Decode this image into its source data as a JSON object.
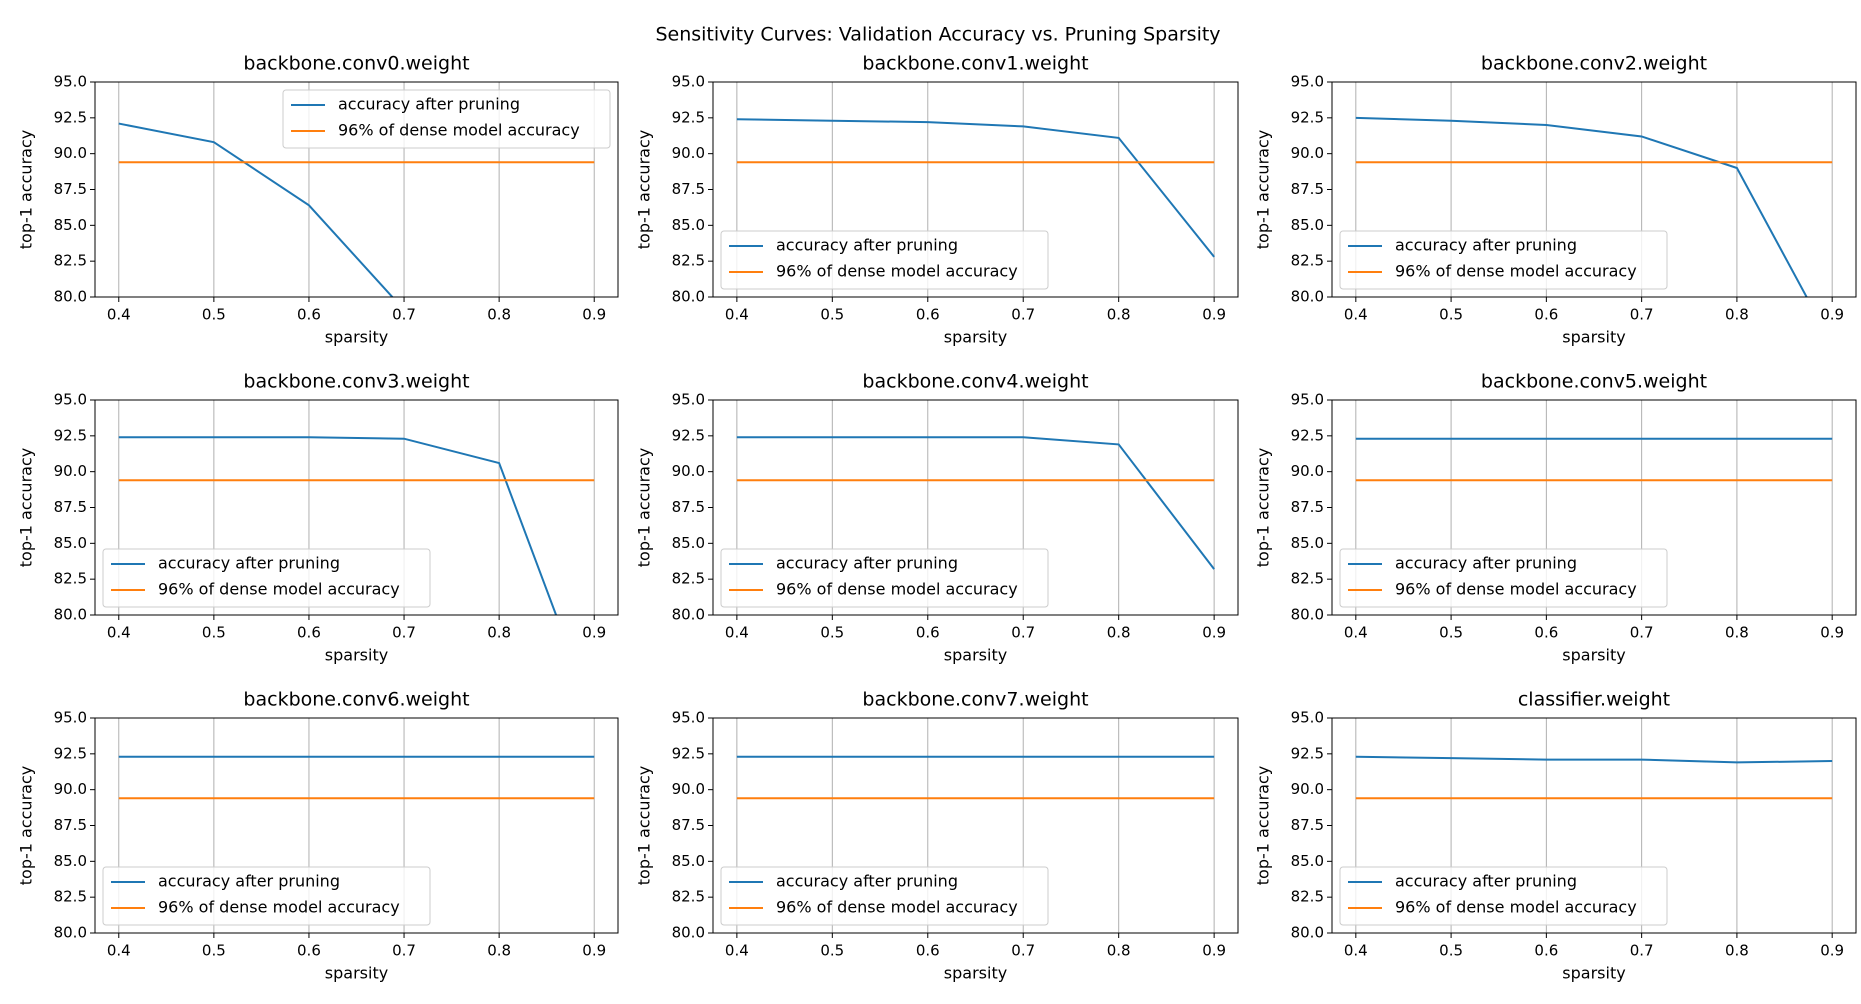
{
  "title": "Sensitivity Curves: Validation Accuracy vs. Pruning Sparsity",
  "chart_data": [
    {
      "type": "line",
      "title": "backbone.conv0.weight",
      "xlabel": "sparsity",
      "ylabel": "top-1 accuracy",
      "legend": "upper right",
      "grid": "x",
      "x": [
        0.4,
        0.5,
        0.6,
        0.7,
        0.8,
        0.9
      ],
      "xlim": [
        0.375,
        0.925
      ],
      "xticks": [
        0.4,
        0.5,
        0.6,
        0.7,
        0.8,
        0.9
      ],
      "ylim": [
        80,
        95
      ],
      "yticks": [
        {
          "value": 80,
          "label": "80.0"
        },
        {
          "value": 82.5,
          "label": "82.5"
        },
        {
          "value": 85,
          "label": "85.0"
        },
        {
          "value": 87.5,
          "label": "87.5"
        },
        {
          "value": 90,
          "label": "90.0"
        },
        {
          "value": 92.5,
          "label": "92.5"
        },
        {
          "value": 95,
          "label": "95.0"
        }
      ],
      "series": [
        {
          "name": "accuracy after pruning",
          "color": "#1f77b4",
          "values": [
            92.1,
            90.8,
            86.4,
            79.1,
            null,
            null
          ]
        },
        {
          "name": "96% of dense model accuracy",
          "color": "#ff7f0e",
          "values": [
            89.4,
            89.4,
            89.4,
            89.4,
            89.4,
            89.4
          ]
        }
      ]
    },
    {
      "type": "line",
      "title": "backbone.conv1.weight",
      "xlabel": "sparsity",
      "ylabel": "top-1 accuracy",
      "legend": "lower left",
      "grid": "x",
      "x": [
        0.4,
        0.5,
        0.6,
        0.7,
        0.8,
        0.9
      ],
      "xlim": [
        0.375,
        0.925
      ],
      "xticks": [
        0.4,
        0.5,
        0.6,
        0.7,
        0.8,
        0.9
      ],
      "ylim": [
        80,
        95
      ],
      "yticks": [
        {
          "value": 80,
          "label": "80.0"
        },
        {
          "value": 82.5,
          "label": "82.5"
        },
        {
          "value": 85,
          "label": "85.0"
        },
        {
          "value": 87.5,
          "label": "87.5"
        },
        {
          "value": 90,
          "label": "90.0"
        },
        {
          "value": 92.5,
          "label": "92.5"
        },
        {
          "value": 95,
          "label": "95.0"
        }
      ],
      "series": [
        {
          "name": "accuracy after pruning",
          "color": "#1f77b4",
          "values": [
            92.4,
            92.3,
            92.2,
            91.9,
            91.1,
            82.8
          ]
        },
        {
          "name": "96% of dense model accuracy",
          "color": "#ff7f0e",
          "values": [
            89.4,
            89.4,
            89.4,
            89.4,
            89.4,
            89.4
          ]
        }
      ]
    },
    {
      "type": "line",
      "title": "backbone.conv2.weight",
      "xlabel": "sparsity",
      "ylabel": "top-1 accuracy",
      "legend": "lower left",
      "grid": "x",
      "x": [
        0.4,
        0.5,
        0.6,
        0.7,
        0.8,
        0.9
      ],
      "xlim": [
        0.375,
        0.925
      ],
      "xticks": [
        0.4,
        0.5,
        0.6,
        0.7,
        0.8,
        0.9
      ],
      "ylim": [
        80,
        95
      ],
      "yticks": [
        {
          "value": 80,
          "label": "80.0"
        },
        {
          "value": 82.5,
          "label": "82.5"
        },
        {
          "value": 85,
          "label": "85.0"
        },
        {
          "value": 87.5,
          "label": "87.5"
        },
        {
          "value": 90,
          "label": "90.0"
        },
        {
          "value": 92.5,
          "label": "92.5"
        },
        {
          "value": 95,
          "label": "95.0"
        }
      ],
      "series": [
        {
          "name": "accuracy after pruning",
          "color": "#1f77b4",
          "values": [
            92.5,
            92.3,
            92.0,
            91.2,
            89.0,
            76.7
          ]
        },
        {
          "name": "96% of dense model accuracy",
          "color": "#ff7f0e",
          "values": [
            89.4,
            89.4,
            89.4,
            89.4,
            89.4,
            89.4
          ]
        }
      ]
    },
    {
      "type": "line",
      "title": "backbone.conv3.weight",
      "xlabel": "sparsity",
      "ylabel": "top-1 accuracy",
      "legend": "lower left",
      "grid": "x",
      "x": [
        0.4,
        0.5,
        0.6,
        0.7,
        0.8,
        0.9
      ],
      "xlim": [
        0.375,
        0.925
      ],
      "xticks": [
        0.4,
        0.5,
        0.6,
        0.7,
        0.8,
        0.9
      ],
      "ylim": [
        80,
        95
      ],
      "yticks": [
        {
          "value": 80,
          "label": "80.0"
        },
        {
          "value": 82.5,
          "label": "82.5"
        },
        {
          "value": 85,
          "label": "85.0"
        },
        {
          "value": 87.5,
          "label": "87.5"
        },
        {
          "value": 90,
          "label": "90.0"
        },
        {
          "value": 92.5,
          "label": "92.5"
        },
        {
          "value": 95,
          "label": "95.0"
        }
      ],
      "series": [
        {
          "name": "accuracy after pruning",
          "color": "#1f77b4",
          "values": [
            92.4,
            92.4,
            92.4,
            92.3,
            90.6,
            72.9
          ]
        },
        {
          "name": "96% of dense model accuracy",
          "color": "#ff7f0e",
          "values": [
            89.4,
            89.4,
            89.4,
            89.4,
            89.4,
            89.4
          ]
        }
      ]
    },
    {
      "type": "line",
      "title": "backbone.conv4.weight",
      "xlabel": "sparsity",
      "ylabel": "top-1 accuracy",
      "legend": "lower left",
      "grid": "x",
      "x": [
        0.4,
        0.5,
        0.6,
        0.7,
        0.8,
        0.9
      ],
      "xlim": [
        0.375,
        0.925
      ],
      "xticks": [
        0.4,
        0.5,
        0.6,
        0.7,
        0.8,
        0.9
      ],
      "ylim": [
        80,
        95
      ],
      "yticks": [
        {
          "value": 80,
          "label": "80.0"
        },
        {
          "value": 82.5,
          "label": "82.5"
        },
        {
          "value": 85,
          "label": "85.0"
        },
        {
          "value": 87.5,
          "label": "87.5"
        },
        {
          "value": 90,
          "label": "90.0"
        },
        {
          "value": 92.5,
          "label": "92.5"
        },
        {
          "value": 95,
          "label": "95.0"
        }
      ],
      "series": [
        {
          "name": "accuracy after pruning",
          "color": "#1f77b4",
          "values": [
            92.4,
            92.4,
            92.4,
            92.4,
            91.9,
            83.2
          ]
        },
        {
          "name": "96% of dense model accuracy",
          "color": "#ff7f0e",
          "values": [
            89.4,
            89.4,
            89.4,
            89.4,
            89.4,
            89.4
          ]
        }
      ]
    },
    {
      "type": "line",
      "title": "backbone.conv5.weight",
      "xlabel": "sparsity",
      "ylabel": "top-1 accuracy",
      "legend": "lower left",
      "grid": "x",
      "x": [
        0.4,
        0.5,
        0.6,
        0.7,
        0.8,
        0.9
      ],
      "xlim": [
        0.375,
        0.925
      ],
      "xticks": [
        0.4,
        0.5,
        0.6,
        0.7,
        0.8,
        0.9
      ],
      "ylim": [
        80,
        95
      ],
      "yticks": [
        {
          "value": 80,
          "label": "80.0"
        },
        {
          "value": 82.5,
          "label": "82.5"
        },
        {
          "value": 85,
          "label": "85.0"
        },
        {
          "value": 87.5,
          "label": "87.5"
        },
        {
          "value": 90,
          "label": "90.0"
        },
        {
          "value": 92.5,
          "label": "92.5"
        },
        {
          "value": 95,
          "label": "95.0"
        }
      ],
      "series": [
        {
          "name": "accuracy after pruning",
          "color": "#1f77b4",
          "values": [
            92.3,
            92.3,
            92.3,
            92.3,
            92.3,
            92.3
          ]
        },
        {
          "name": "96% of dense model accuracy",
          "color": "#ff7f0e",
          "values": [
            89.4,
            89.4,
            89.4,
            89.4,
            89.4,
            89.4
          ]
        }
      ]
    },
    {
      "type": "line",
      "title": "backbone.conv6.weight",
      "xlabel": "sparsity",
      "ylabel": "top-1 accuracy",
      "legend": "lower left",
      "grid": "x",
      "x": [
        0.4,
        0.5,
        0.6,
        0.7,
        0.8,
        0.9
      ],
      "xlim": [
        0.375,
        0.925
      ],
      "xticks": [
        0.4,
        0.5,
        0.6,
        0.7,
        0.8,
        0.9
      ],
      "ylim": [
        80,
        95
      ],
      "yticks": [
        {
          "value": 80,
          "label": "80.0"
        },
        {
          "value": 82.5,
          "label": "82.5"
        },
        {
          "value": 85,
          "label": "85.0"
        },
        {
          "value": 87.5,
          "label": "87.5"
        },
        {
          "value": 90,
          "label": "90.0"
        },
        {
          "value": 92.5,
          "label": "92.5"
        },
        {
          "value": 95,
          "label": "95.0"
        }
      ],
      "series": [
        {
          "name": "accuracy after pruning",
          "color": "#1f77b4",
          "values": [
            92.3,
            92.3,
            92.3,
            92.3,
            92.3,
            92.3
          ]
        },
        {
          "name": "96% of dense model accuracy",
          "color": "#ff7f0e",
          "values": [
            89.4,
            89.4,
            89.4,
            89.4,
            89.4,
            89.4
          ]
        }
      ]
    },
    {
      "type": "line",
      "title": "backbone.conv7.weight",
      "xlabel": "sparsity",
      "ylabel": "top-1 accuracy",
      "legend": "lower left",
      "grid": "x",
      "x": [
        0.4,
        0.5,
        0.6,
        0.7,
        0.8,
        0.9
      ],
      "xlim": [
        0.375,
        0.925
      ],
      "xticks": [
        0.4,
        0.5,
        0.6,
        0.7,
        0.8,
        0.9
      ],
      "ylim": [
        80,
        95
      ],
      "yticks": [
        {
          "value": 80,
          "label": "80.0"
        },
        {
          "value": 82.5,
          "label": "82.5"
        },
        {
          "value": 85,
          "label": "85.0"
        },
        {
          "value": 87.5,
          "label": "87.5"
        },
        {
          "value": 90,
          "label": "90.0"
        },
        {
          "value": 92.5,
          "label": "92.5"
        },
        {
          "value": 95,
          "label": "95.0"
        }
      ],
      "series": [
        {
          "name": "accuracy after pruning",
          "color": "#1f77b4",
          "values": [
            92.3,
            92.3,
            92.3,
            92.3,
            92.3,
            92.3
          ]
        },
        {
          "name": "96% of dense model accuracy",
          "color": "#ff7f0e",
          "values": [
            89.4,
            89.4,
            89.4,
            89.4,
            89.4,
            89.4
          ]
        }
      ]
    },
    {
      "type": "line",
      "title": "classifier.weight",
      "xlabel": "sparsity",
      "ylabel": "top-1 accuracy",
      "legend": "lower left",
      "grid": "x",
      "x": [
        0.4,
        0.5,
        0.6,
        0.7,
        0.8,
        0.9
      ],
      "xlim": [
        0.375,
        0.925
      ],
      "xticks": [
        0.4,
        0.5,
        0.6,
        0.7,
        0.8,
        0.9
      ],
      "ylim": [
        80,
        95
      ],
      "yticks": [
        {
          "value": 80,
          "label": "80.0"
        },
        {
          "value": 82.5,
          "label": "82.5"
        },
        {
          "value": 85,
          "label": "85.0"
        },
        {
          "value": 87.5,
          "label": "87.5"
        },
        {
          "value": 90,
          "label": "90.0"
        },
        {
          "value": 92.5,
          "label": "92.5"
        },
        {
          "value": 95,
          "label": "95.0"
        }
      ],
      "series": [
        {
          "name": "accuracy after pruning",
          "color": "#1f77b4",
          "values": [
            92.3,
            92.2,
            92.1,
            92.1,
            91.9,
            92.0
          ]
        },
        {
          "name": "96% of dense model accuracy",
          "color": "#ff7f0e",
          "values": [
            89.4,
            89.4,
            89.4,
            89.4,
            89.4,
            89.4
          ]
        }
      ]
    }
  ]
}
